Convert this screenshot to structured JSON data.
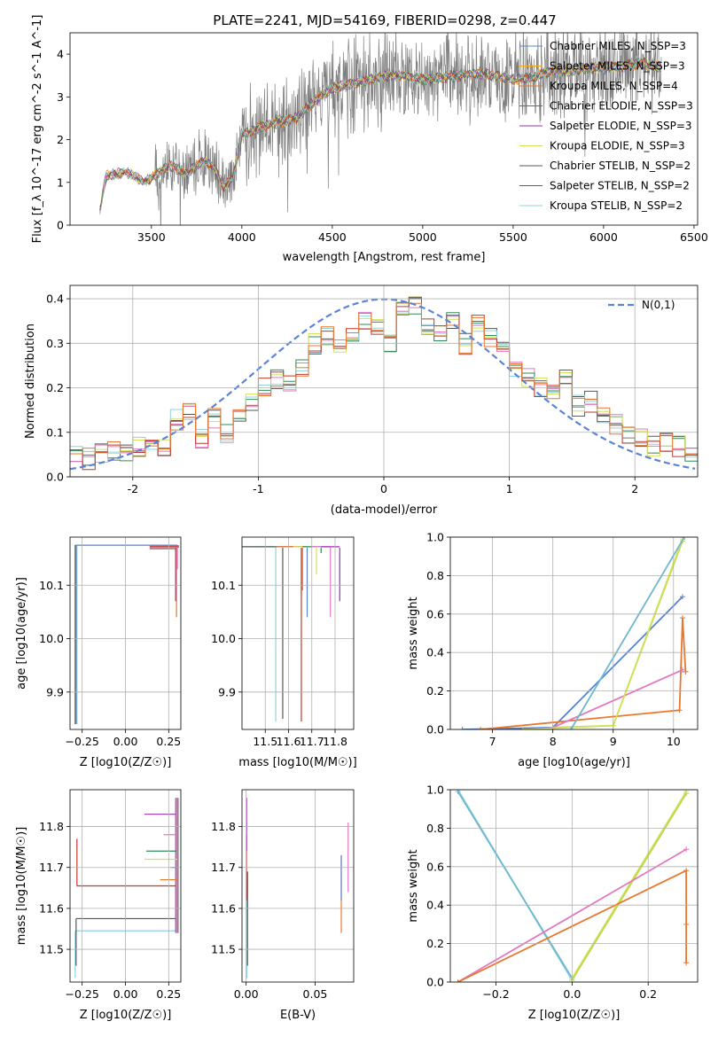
{
  "figure_title": "PLATE=2241, MJD=54169, FIBERID=0298, z=0.447",
  "colors": {
    "spectrum": "#808080",
    "gaussian": "#5b84d6"
  },
  "chart_data": [
    {
      "id": "spectrum",
      "type": "line",
      "xlabel": "wavelength [Angstrom, rest frame]",
      "ylabel": "Flux [f_λ 10^-17 erg cm^-2 s^-1 A^-1]",
      "xlim": [
        3050,
        6520
      ],
      "ylim": [
        0,
        4.5
      ],
      "xticks": [
        3500,
        4000,
        4500,
        5000,
        5500,
        6000,
        6500
      ],
      "yticks": [
        0,
        1,
        2,
        3,
        4
      ],
      "grid": false,
      "legend_position": "top-right",
      "series": [
        {
          "name": "Chabrier MILES, N_SSP=3",
          "color": "#5b84d6"
        },
        {
          "name": "Salpeter MILES, N_SSP=3",
          "color": "#f5a623"
        },
        {
          "name": "Kroupa MILES, N_SSP=4",
          "color": "#e8772e"
        },
        {
          "name": "Chabrier ELODIE, N_SSP=3",
          "color": "#2e8b57"
        },
        {
          "name": "Salpeter ELODIE, N_SSP=3",
          "color": "#9b30b0"
        },
        {
          "name": "Kroupa ELODIE, N_SSP=3",
          "color": "#d4e157"
        },
        {
          "name": "Chabrier STELIB, N_SSP=2",
          "color": "#555555"
        },
        {
          "name": "Salpeter STELIB, N_SSP=2",
          "color": "#c0392b"
        },
        {
          "name": "Kroupa STELIB, N_SSP=2",
          "color": "#8fd3e0"
        }
      ],
      "data_wavelength": [
        3200,
        3250,
        3300,
        3350,
        3400,
        3450,
        3500,
        3550,
        3600,
        3650,
        3700,
        3750,
        3800,
        3850,
        3900,
        3950,
        4000,
        4100,
        4200,
        4300,
        4400,
        4500,
        4600,
        4700,
        4800,
        4900,
        5000,
        5100,
        5200,
        5300,
        5400,
        5500,
        5600,
        5700,
        5800,
        5900,
        6000,
        6100,
        6200,
        6300
      ],
      "data_flux": [
        0,
        1.15,
        1.2,
        1.22,
        1.18,
        1.0,
        1.1,
        1.25,
        1.4,
        1.3,
        1.2,
        1.4,
        1.5,
        1.3,
        0.9,
        1.1,
        2.1,
        2.3,
        2.4,
        2.5,
        2.9,
        3.2,
        3.3,
        3.4,
        3.5,
        3.5,
        3.4,
        3.45,
        3.5,
        3.55,
        3.5,
        3.4,
        3.45,
        3.6,
        3.6,
        3.65,
        3.7,
        3.7,
        3.8,
        3.7
      ]
    },
    {
      "id": "residuals",
      "type": "line",
      "xlabel": "(data-model)/error",
      "ylabel": "Normed distribution",
      "xlim": [
        -2.5,
        2.5
      ],
      "ylim": [
        0,
        0.43
      ],
      "xticks": [
        -2,
        -1,
        0,
        1,
        2
      ],
      "yticks": [
        0.0,
        0.1,
        0.2,
        0.3,
        0.4
      ],
      "grid": true,
      "legend_position": "top-right",
      "gaussian_label": "N(0,1)",
      "bins_x": [
        -2.5,
        -2.4,
        -2.3,
        -2.2,
        -2.1,
        -2.0,
        -1.9,
        -1.8,
        -1.7,
        -1.6,
        -1.5,
        -1.4,
        -1.3,
        -1.2,
        -1.1,
        -1.0,
        -0.9,
        -0.8,
        -0.7,
        -0.6,
        -0.5,
        -0.4,
        -0.3,
        -0.2,
        -0.1,
        0.0,
        0.1,
        0.2,
        0.3,
        0.4,
        0.5,
        0.6,
        0.7,
        0.8,
        0.9,
        1.0,
        1.1,
        1.2,
        1.3,
        1.4,
        1.5,
        1.6,
        1.7,
        1.8,
        1.9,
        2.0,
        2.1,
        2.2,
        2.3,
        2.4
      ],
      "hist_values": [
        0.05,
        0.04,
        0.05,
        0.06,
        0.05,
        0.07,
        0.07,
        0.07,
        0.13,
        0.15,
        0.09,
        0.13,
        0.1,
        0.14,
        0.17,
        0.2,
        0.22,
        0.21,
        0.25,
        0.3,
        0.32,
        0.3,
        0.31,
        0.35,
        0.34,
        0.3,
        0.37,
        0.39,
        0.33,
        0.32,
        0.35,
        0.3,
        0.34,
        0.31,
        0.3,
        0.25,
        0.22,
        0.2,
        0.2,
        0.22,
        0.16,
        0.17,
        0.13,
        0.12,
        0.1,
        0.09,
        0.07,
        0.08,
        0.07,
        0.06
      ]
    },
    {
      "id": "age-vs-Z",
      "type": "scatter",
      "xlabel": "Z [log10(Z/Z☉)]",
      "ylabel": "age [log10(age/yr)]",
      "xlim": [
        -0.32,
        0.32
      ],
      "ylim": [
        9.83,
        10.19
      ],
      "xticks": [
        -0.25,
        0.0,
        0.25
      ],
      "xtick_labels": [
        "−0.25",
        "0.00",
        "0.25"
      ],
      "yticks": [
        9.9,
        10.0,
        10.1
      ],
      "grid": true
    },
    {
      "id": "age-vs-mass",
      "type": "scatter",
      "xlabel": "mass [log10(M/M☉)]",
      "xlim": [
        11.4,
        11.88
      ],
      "ylim": [
        9.83,
        10.19
      ],
      "xticks": [
        11.5,
        11.6,
        11.7,
        11.8
      ],
      "yticks": [
        9.9,
        10.0,
        10.1
      ],
      "grid": true
    },
    {
      "id": "mass-weight-vs-age",
      "type": "line",
      "xlabel": "age [log10(age/yr)]",
      "ylabel": "mass weight",
      "xlim": [
        6.3,
        10.4
      ],
      "ylim": [
        0,
        1
      ],
      "xticks": [
        7,
        8,
        9,
        10
      ],
      "yticks": [
        0.0,
        0.2,
        0.4,
        0.6,
        0.8,
        1.0
      ],
      "grid": true,
      "series": [
        {
          "name": "Chabrier MILES",
          "x": [
            6.5,
            8.0,
            10.15
          ],
          "y": [
            0.0,
            0.01,
            0.69
          ]
        },
        {
          "name": "Salpeter MILES",
          "x": [
            8.0,
            9.0,
            10.15
          ],
          "y": [
            0.01,
            0.02,
            0.98
          ]
        },
        {
          "name": "Kroupa MILES",
          "x": [
            6.8,
            10.1,
            10.15,
            10.2,
            10.2
          ],
          "y": [
            0.0,
            0.1,
            0.58,
            0.3,
            0.3
          ]
        },
        {
          "name": "Salpeter ELODIE",
          "x": [
            8.0,
            10.15
          ],
          "y": [
            0.01,
            0.31
          ]
        },
        {
          "name": "Kroupa ELODIE",
          "x": [
            7.5,
            9.0,
            10.15
          ],
          "y": [
            0.0,
            0.02,
            0.99
          ]
        },
        {
          "name": "Kroupa STELIB",
          "x": [
            8.3,
            10.18
          ],
          "y": [
            0.0,
            1.0
          ]
        }
      ]
    },
    {
      "id": "mass-vs-Z",
      "type": "scatter",
      "xlabel": "Z [log10(Z/Z☉)]",
      "ylabel": "mass [log10(M/M☉)]",
      "xlim": [
        -0.32,
        0.32
      ],
      "ylim": [
        11.42,
        11.89
      ],
      "xticks": [
        -0.25,
        0.0,
        0.25
      ],
      "xtick_labels": [
        "−0.25",
        "0.00",
        "0.25"
      ],
      "yticks": [
        11.5,
        11.6,
        11.7,
        11.8
      ],
      "grid": true
    },
    {
      "id": "mass-vs-EBV",
      "type": "scatter",
      "xlabel": "E(B-V)",
      "xlim": [
        -0.003,
        0.078
      ],
      "ylim": [
        11.42,
        11.89
      ],
      "xticks": [
        0.0,
        0.05
      ],
      "xtick_labels": [
        "0.00",
        "0.05"
      ],
      "yticks": [
        11.5,
        11.6,
        11.7,
        11.8
      ],
      "grid": true
    },
    {
      "id": "mass-weight-vs-Z",
      "type": "line",
      "xlabel": "Z [log10(Z/Z☉)]",
      "ylabel": "mass weight",
      "xlim": [
        -0.32,
        0.33
      ],
      "ylim": [
        0,
        1
      ],
      "xticks": [
        -0.2,
        0.0,
        0.2
      ],
      "xtick_labels": [
        "−0.2",
        "0.0",
        "0.2"
      ],
      "yticks": [
        0.0,
        0.2,
        0.4,
        0.6,
        0.8,
        1.0
      ],
      "grid": true,
      "series": [
        {
          "name": "Kroupa STELIB",
          "x": [
            -0.3,
            0.0
          ],
          "y": [
            1.0,
            0.01
          ]
        },
        {
          "name": "Chabrier MILES",
          "x": [
            -0.3,
            0.0
          ],
          "y": [
            0.99,
            0.02
          ]
        },
        {
          "name": "Kroupa ELODIE",
          "x": [
            0.0,
            0.3
          ],
          "y": [
            0.02,
            0.99
          ]
        },
        {
          "name": "Salpeter MILES",
          "x": [
            0.0,
            0.3
          ],
          "y": [
            0.01,
            0.98
          ]
        },
        {
          "name": "Salpeter ELODIE",
          "x": [
            -0.3,
            0.3
          ],
          "y": [
            0.0,
            0.69
          ]
        },
        {
          "name": "Kroupa MILES",
          "x": [
            -0.3,
            0.3,
            0.3,
            0.3
          ],
          "y": [
            0.0,
            0.58,
            0.3,
            0.1
          ]
        }
      ]
    }
  ]
}
